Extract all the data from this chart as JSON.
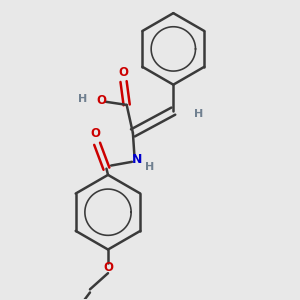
{
  "bg_color": "#e8e8e8",
  "bond_color": "#3a3a3a",
  "o_color": "#cc0000",
  "n_color": "#0000cc",
  "h_color": "#708090",
  "line_width": 1.8,
  "fig_width": 3.0,
  "fig_height": 3.0,
  "dpi": 100,
  "xlim": [
    0.05,
    0.95
  ],
  "ylim": [
    0.02,
    0.98
  ]
}
